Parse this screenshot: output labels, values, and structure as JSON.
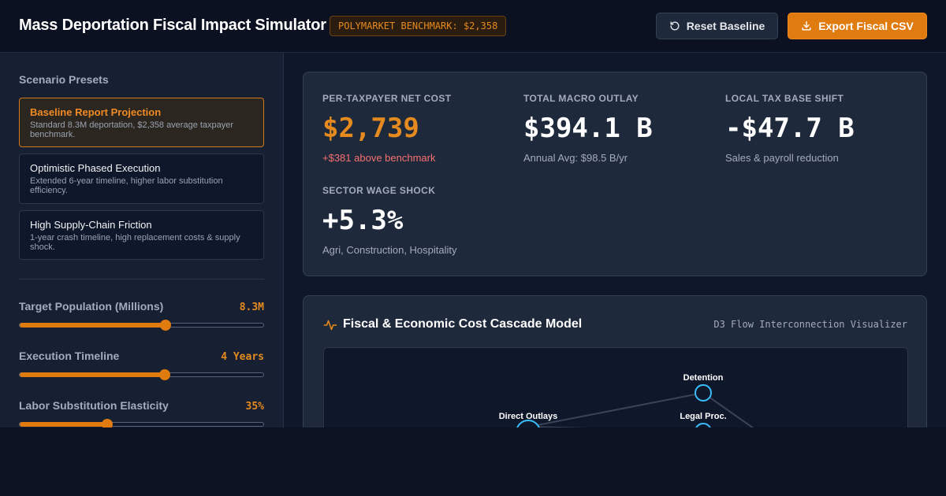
{
  "header": {
    "title": "Mass Deportation Fiscal Impact Simulator",
    "benchmark_badge": "POLYMARKET BENCHMARK: $2,358",
    "reset_label": "Reset Baseline",
    "export_label": "Export Fiscal CSV"
  },
  "sidebar": {
    "presets_heading": "Scenario Presets",
    "presets": [
      {
        "title": "Baseline Report Projection",
        "desc": "Standard 8.3M deportation, $2,358 average taxpayer benchmark.",
        "active": true
      },
      {
        "title": "Optimistic Phased Execution",
        "desc": "Extended 6-year timeline, higher labor substitution efficiency.",
        "active": false
      },
      {
        "title": "High Supply-Chain Friction",
        "desc": "1-year crash timeline, high replacement costs & supply shock.",
        "active": false
      }
    ],
    "sliders": [
      {
        "label": "Target Population (Millions)",
        "value": "8.3M",
        "fraction": 0.6
      },
      {
        "label": "Execution Timeline",
        "value": "4 Years",
        "fraction": 0.594
      },
      {
        "label": "Labor Substitution Elasticity",
        "value": "35%",
        "fraction": 0.36
      }
    ]
  },
  "kpis": [
    {
      "label": "PER-TAXPAYER NET COST",
      "value": "$2,739",
      "sub": "+$381 above benchmark",
      "accent": "#e58a1e"
    },
    {
      "label": "TOTAL MACRO OUTLAY",
      "value": "$394.1 B",
      "sub": "Annual Avg: $98.5 B/yr"
    },
    {
      "label": "LOCAL TAX BASE SHIFT",
      "value": "-$47.7 B",
      "sub": "Sales & payroll reduction"
    },
    {
      "label": "SECTOR WAGE SHOCK",
      "value": "+5.3%",
      "sub": "Agri, Construction, Hospitality"
    }
  ],
  "cascade": {
    "title": "Fiscal & Economic Cost Cascade Model",
    "tag": "D3 Flow Interconnection Visualizer",
    "icon": "activity-icon",
    "nodes": [
      "Detention",
      "Direct Outlays",
      "Legal Proc."
    ]
  },
  "colors": {
    "accent": "#e07b0f",
    "node_stroke": "#38bdf8",
    "negative": "#f87171"
  }
}
